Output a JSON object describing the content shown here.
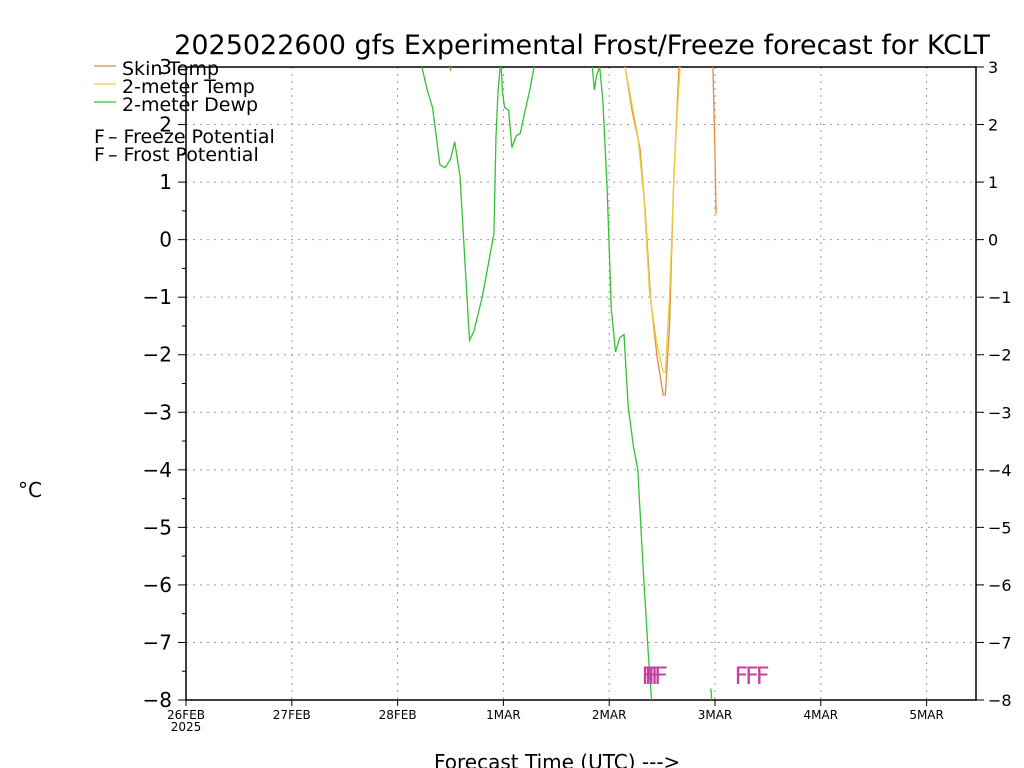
{
  "chart_data": {
    "type": "line",
    "title": "2025022600 gfs Experimental Frost/Freeze forecast for KCLT",
    "xlabel": "Forecast Time (UTC) --->",
    "ylabel": "°C",
    "ylim": [
      -8,
      3
    ],
    "y_ticks": [
      -8,
      -7,
      -6,
      -5,
      -4,
      -3,
      -2,
      -1,
      0,
      1,
      2,
      3
    ],
    "x_ticks": [
      {
        "day": 0,
        "label": "26FEB",
        "sub": "2025"
      },
      {
        "day": 1,
        "label": "27FEB",
        "sub": ""
      },
      {
        "day": 2,
        "label": "28FEB",
        "sub": ""
      },
      {
        "day": 3,
        "label": "1MAR",
        "sub": ""
      },
      {
        "day": 4,
        "label": "2MAR",
        "sub": ""
      },
      {
        "day": 5,
        "label": "3MAR",
        "sub": ""
      },
      {
        "day": 6,
        "label": "4MAR",
        "sub": ""
      },
      {
        "day": 7,
        "label": "5MAR",
        "sub": ""
      }
    ],
    "grid": true,
    "series": [
      {
        "name": "Skin Temp",
        "color": "#e8893c",
        "segments": [
          [
            [
              2.49,
              3.1
            ],
            [
              2.5,
              2.95
            ],
            [
              2.51,
              3.1
            ]
          ],
          [
            [
              4.15,
              3.1
            ],
            [
              4.22,
              2.2
            ],
            [
              4.29,
              1.6
            ],
            [
              4.34,
              0.5
            ],
            [
              4.39,
              -1.0
            ],
            [
              4.45,
              -2.0
            ],
            [
              4.51,
              -2.7
            ],
            [
              4.53,
              -2.7
            ],
            [
              4.57,
              -1.5
            ],
            [
              4.61,
              1.0
            ],
            [
              4.66,
              3.1
            ]
          ],
          [
            [
              4.98,
              3.1
            ],
            [
              5.0,
              1.5
            ],
            [
              5.01,
              0.45
            ]
          ]
        ]
      },
      {
        "name": "2-meter Temp",
        "color": "#e6d33c",
        "segments": [
          [
            [
              4.15,
              3.1
            ],
            [
              4.2,
              2.5
            ],
            [
              4.27,
              1.8
            ],
            [
              4.33,
              0.7
            ],
            [
              4.38,
              -0.9
            ],
            [
              4.45,
              -1.8
            ],
            [
              4.51,
              -2.3
            ],
            [
              4.53,
              -2.3
            ],
            [
              4.57,
              -1.0
            ],
            [
              4.62,
              1.5
            ],
            [
              4.67,
              3.1
            ]
          ]
        ]
      },
      {
        "name": "2-meter Dewp",
        "color": "#34c233",
        "segments": [
          [
            [
              2.23,
              3.1
            ],
            [
              2.28,
              2.6
            ],
            [
              2.33,
              2.3
            ],
            [
              2.4,
              1.3
            ],
            [
              2.45,
              1.25
            ],
            [
              2.5,
              1.4
            ],
            [
              2.54,
              1.7
            ],
            [
              2.59,
              1.1
            ],
            [
              2.64,
              -0.5
            ],
            [
              2.68,
              -1.75
            ],
            [
              2.72,
              -1.6
            ],
            [
              2.76,
              -1.3
            ],
            [
              2.8,
              -1.0
            ],
            [
              2.84,
              -0.6
            ],
            [
              2.88,
              -0.2
            ],
            [
              2.91,
              0.1
            ],
            [
              2.93,
              1.8
            ],
            [
              2.95,
              2.6
            ],
            [
              2.97,
              3.1
            ]
          ],
          [
            [
              2.98,
              3.1
            ],
            [
              2.99,
              2.6
            ],
            [
              3.01,
              2.3
            ],
            [
              3.05,
              2.25
            ],
            [
              3.08,
              1.6
            ],
            [
              3.12,
              1.8
            ],
            [
              3.16,
              1.85
            ],
            [
              3.2,
              2.2
            ],
            [
              3.25,
              2.6
            ],
            [
              3.29,
              3.1
            ]
          ],
          [
            [
              3.84,
              3.1
            ],
            [
              3.86,
              2.6
            ],
            [
              3.88,
              2.85
            ],
            [
              3.91,
              3.1
            ]
          ],
          [
            [
              3.91,
              3.1
            ],
            [
              3.94,
              2.4
            ],
            [
              3.98,
              0.9
            ],
            [
              4.02,
              -1.2
            ],
            [
              4.06,
              -1.95
            ],
            [
              4.1,
              -1.7
            ],
            [
              4.14,
              -1.65
            ],
            [
              4.18,
              -2.9
            ],
            [
              4.23,
              -3.6
            ],
            [
              4.27,
              -4.0
            ],
            [
              4.32,
              -5.7
            ],
            [
              4.37,
              -7.2
            ],
            [
              4.4,
              -8.0
            ]
          ],
          [
            [
              4.96,
              -7.8
            ],
            [
              4.97,
              -8.0
            ]
          ]
        ]
      }
    ],
    "legend": {
      "placement": "top-left",
      "potentials": [
        {
          "letter": "F",
          "text": " – Freeze Potential",
          "color": "#c83ea0"
        },
        {
          "letter": "F",
          "text": " – Frost Potential",
          "color": "#5555e0"
        }
      ]
    },
    "freeze_marks": {
      "y": -7.55,
      "color": "#c83ea0",
      "days": [
        4.37,
        4.4,
        4.43,
        4.46,
        4.49,
        5.25,
        5.35,
        5.45
      ]
    }
  }
}
